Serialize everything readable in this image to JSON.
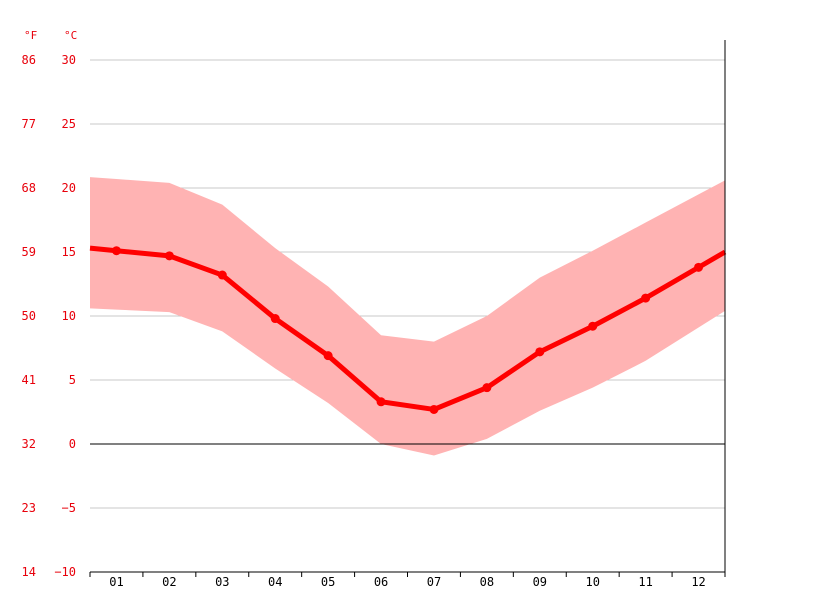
{
  "chart_data": {
    "type": "line",
    "categories": [
      "01",
      "02",
      "03",
      "04",
      "05",
      "06",
      "07",
      "08",
      "09",
      "10",
      "11",
      "12"
    ],
    "series": [
      {
        "values": [
          15.1,
          14.7,
          13.2,
          9.8,
          6.9,
          3.3,
          2.7,
          4.4,
          7.2,
          9.2,
          11.4,
          13.8
        ]
      }
    ],
    "band": {
      "upper": [
        20.7,
        20.4,
        18.7,
        15.3,
        12.3,
        8.5,
        8.0,
        10.0,
        13.0,
        15.1,
        17.3,
        19.5
      ],
      "lower": [
        10.5,
        10.3,
        8.8,
        5.9,
        3.2,
        0.0,
        -0.9,
        0.4,
        2.6,
        4.4,
        6.5,
        9.1
      ]
    },
    "y_ticks_celsius": [
      "30",
      "25",
      "20",
      "15",
      "10",
      "5",
      "0",
      "−5",
      "−10"
    ],
    "y_ticks_fahrenheit": [
      "86",
      "77",
      "68",
      "59",
      "50",
      "41",
      "32",
      "23",
      "14"
    ],
    "y_unit_left": "°F",
    "y_unit_right": "°C",
    "ylim": [
      -10,
      30
    ],
    "grid": true,
    "colors": {
      "line": "#ff0000",
      "band": "#ffb3b3",
      "axis_text": "#e8000b",
      "grid": "#c8c8c8"
    }
  }
}
